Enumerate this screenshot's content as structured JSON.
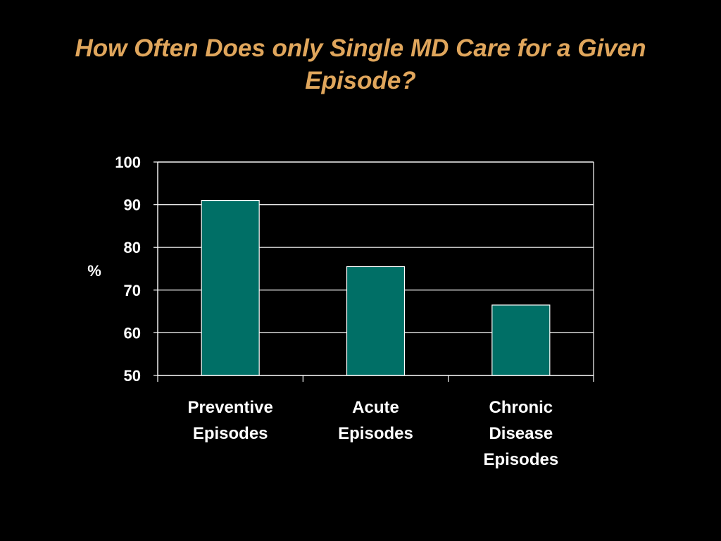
{
  "slide": {
    "title": "How Often Does only Single MD Care for a Given Episode?"
  },
  "colors": {
    "background": "#000000",
    "title": "#e0a65c",
    "bar_fill": "#006f66",
    "bar_stroke": "#ffffff",
    "axis": "#ffffff",
    "gridline": "#ffffff",
    "text": "#ffffff"
  },
  "chart_data": {
    "type": "bar",
    "title": "How Often Does only Single MD Care for a Given Episode?",
    "categories": [
      [
        "Preventive",
        "Episodes"
      ],
      [
        "Acute",
        "Episodes"
      ],
      [
        "Chronic",
        "Disease",
        "Episodes"
      ]
    ],
    "values": [
      91,
      75.5,
      66.5
    ],
    "xlabel": "",
    "ylabel": "%",
    "ylim": [
      50,
      100
    ],
    "yticks": [
      "50",
      "60",
      "70",
      "80",
      "90",
      "100"
    ],
    "grid": true,
    "legend": "none"
  }
}
